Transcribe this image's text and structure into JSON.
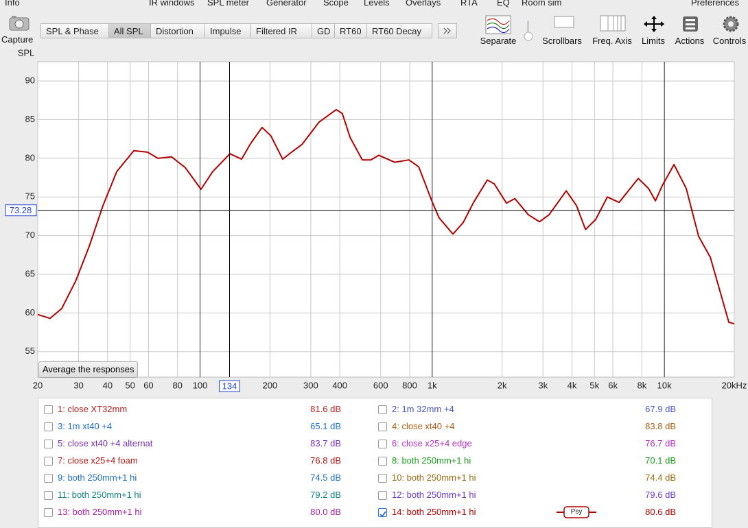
{
  "menu": [
    "Info",
    "IR windows",
    "SPL meter",
    "Generator",
    "Scope",
    "Levels",
    "Overlays",
    "RTA",
    "EQ",
    "Room sim",
    "Preferences"
  ],
  "toolbar": {
    "capture": "Capture",
    "tabs": [
      "SPL & Phase",
      "All SPL",
      "Distortion",
      "Impulse",
      "Filtered IR",
      "GD",
      "RT60",
      "RT60 Decay"
    ],
    "active_tab": "All SPL",
    "tools": [
      "Separate",
      "Scrollbars",
      "Freq. Axis",
      "Limits",
      "Actions",
      "Controls"
    ]
  },
  "chart_data": {
    "type": "line",
    "ylabel": "SPL",
    "xscale": "log",
    "grid": true,
    "xlim": [
      20,
      20000
    ],
    "ylim": [
      51.7,
      92.5
    ],
    "xticks": [
      20,
      30,
      40,
      50,
      60,
      80,
      100,
      200,
      300,
      400,
      600,
      800,
      {
        "value": 1000,
        "label": "1k"
      },
      {
        "value": 2000,
        "label": "2k"
      },
      {
        "value": 3000,
        "label": "3k"
      },
      {
        "value": 4000,
        "label": "4k"
      },
      {
        "value": 5000,
        "label": "5k"
      },
      {
        "value": 6000,
        "label": "6k"
      },
      {
        "value": 8000,
        "label": "8k"
      },
      {
        "value": 10000,
        "label": "10k"
      },
      {
        "value": 20000,
        "label": "20kHz"
      }
    ],
    "yticks": [
      55,
      60,
      65,
      70,
      75,
      80,
      85,
      90
    ],
    "cursor": {
      "x": 134,
      "y": 73.28
    },
    "button": "Average the responses",
    "series": [
      {
        "name": "14: both 250mm+1 hi",
        "color": "#b00000",
        "x": [
          20,
          22.6,
          25.4,
          29.1,
          33.3,
          38.2,
          43.8,
          51.9,
          59.4,
          65.9,
          75.4,
          86.4,
          101,
          113.5,
          134.6,
          151,
          165,
          185,
          202,
          227,
          248,
          275,
          326,
          386,
          410,
          443,
          500,
          544,
          589,
          689,
          794,
          875,
          1002,
          1071,
          1228,
          1360,
          1507,
          1727,
          1850,
          2090,
          2270,
          2595,
          2898,
          3186,
          3778,
          4180,
          4572,
          5060,
          5680,
          6380,
          7720,
          8550,
          9150,
          9800,
          11000,
          12420,
          14050,
          15770,
          18950,
          20000
        ],
        "values": [
          59.8,
          59.3,
          60.6,
          64.1,
          68.6,
          73.9,
          78.3,
          81.0,
          80.8,
          80.0,
          80.2,
          78.8,
          76.0,
          78.3,
          80.6,
          79.9,
          81.9,
          84.0,
          82.9,
          79.9,
          80.8,
          81.8,
          84.7,
          86.3,
          85.8,
          82.7,
          79.8,
          79.8,
          80.4,
          79.5,
          79.8,
          78.9,
          74.3,
          72.3,
          70.2,
          71.7,
          74.3,
          77.2,
          76.7,
          74.2,
          74.8,
          72.7,
          71.8,
          72.7,
          75.8,
          73.9,
          70.8,
          72.1,
          75.0,
          74.3,
          77.4,
          76.1,
          74.5,
          76.5,
          79.2,
          76.1,
          69.9,
          67.2,
          58.8,
          58.6
        ]
      }
    ]
  },
  "legend": [
    {
      "name": "1: close XT32mm",
      "value": "81.6 dB",
      "color": "#b22020",
      "checked": false
    },
    {
      "name": "2: 1m 32mm +4",
      "value": "67.9 dB",
      "color": "#4a55c0",
      "checked": false
    },
    {
      "name": "3: 1m xt40 +4",
      "value": "65.1 dB",
      "color": "#1f6fc0",
      "checked": false
    },
    {
      "name": "4: close xt40 +4",
      "value": "83.8 dB",
      "color": "#b05a10",
      "checked": false
    },
    {
      "name": "5: close xt40 +4 alternat",
      "value": "83.7 dB",
      "color": "#7a30b0",
      "checked": false
    },
    {
      "name": "6: close x25+4 edge",
      "value": "76.7 dB",
      "color": "#b030c0",
      "checked": false
    },
    {
      "name": "7: close x25+4 foam",
      "value": "76.8 dB",
      "color": "#b01818",
      "checked": false
    },
    {
      "name": "8: both 250mm+1 hi",
      "value": "70.1 dB",
      "color": "#1a9a1a",
      "checked": false
    },
    {
      "name": "9: both 250mm+1 hi",
      "value": "74.5 dB",
      "color": "#1f6fc0",
      "checked": false
    },
    {
      "name": "10: both 250mm+1 hi",
      "value": "74.4 dB",
      "color": "#9a6a10",
      "checked": false
    },
    {
      "name": "11: both 250mm+1 hi",
      "value": "79.2 dB",
      "color": "#128080",
      "checked": false
    },
    {
      "name": "12: both 250mm+1 hi",
      "value": "79.6 dB",
      "color": "#6a3ac8",
      "checked": false
    },
    {
      "name": "13: both 250mm+1 hi",
      "value": "80.0 dB",
      "color": "#a020a0",
      "checked": false
    },
    {
      "name": "14: both 250mm+1 hi",
      "value": "80.6 dB",
      "color": "#b00000",
      "checked": true,
      "tag": "Psy"
    }
  ]
}
